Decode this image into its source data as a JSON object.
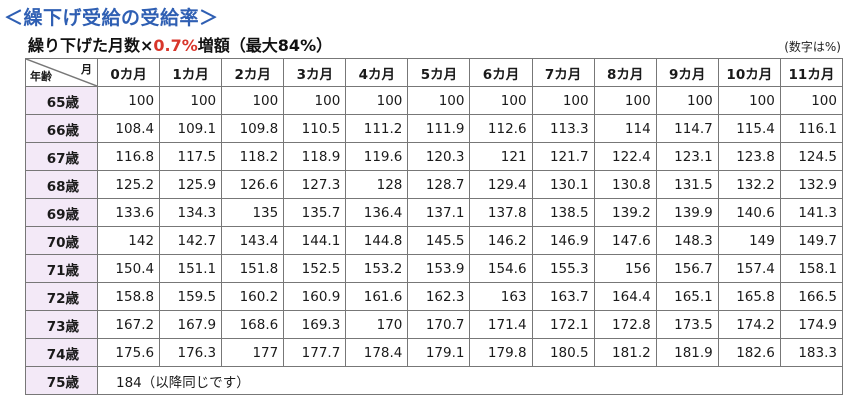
{
  "title": "＜繰下げ受給の受給率＞",
  "subtitle_main": "繰り下げた月数×",
  "subtitle_rate": "0.7%",
  "subtitle_tail": "増額（最大84%）",
  "unit_note": "(数字は%)",
  "corner_month": "月",
  "corner_age": "年齢",
  "months": [
    "0カ月",
    "1カ月",
    "2カ月",
    "3カ月",
    "4カ月",
    "5カ月",
    "6カ月",
    "7カ月",
    "8カ月",
    "9カ月",
    "10カ月",
    "11カ月"
  ],
  "rows": [
    {
      "age": "65歳",
      "values": [
        "100",
        "100",
        "100",
        "100",
        "100",
        "100",
        "100",
        "100",
        "100",
        "100",
        "100",
        "100"
      ]
    },
    {
      "age": "66歳",
      "values": [
        "108.4",
        "109.1",
        "109.8",
        "110.5",
        "111.2",
        "111.9",
        "112.6",
        "113.3",
        "114",
        "114.7",
        "115.4",
        "116.1"
      ]
    },
    {
      "age": "67歳",
      "values": [
        "116.8",
        "117.5",
        "118.2",
        "118.9",
        "119.6",
        "120.3",
        "121",
        "121.7",
        "122.4",
        "123.1",
        "123.8",
        "124.5"
      ]
    },
    {
      "age": "68歳",
      "values": [
        "125.2",
        "125.9",
        "126.6",
        "127.3",
        "128",
        "128.7",
        "129.4",
        "130.1",
        "130.8",
        "131.5",
        "132.2",
        "132.9"
      ]
    },
    {
      "age": "69歳",
      "values": [
        "133.6",
        "134.3",
        "135",
        "135.7",
        "136.4",
        "137.1",
        "137.8",
        "138.5",
        "139.2",
        "139.9",
        "140.6",
        "141.3"
      ]
    },
    {
      "age": "70歳",
      "values": [
        "142",
        "142.7",
        "143.4",
        "144.1",
        "144.8",
        "145.5",
        "146.2",
        "146.9",
        "147.6",
        "148.3",
        "149",
        "149.7"
      ]
    },
    {
      "age": "71歳",
      "values": [
        "150.4",
        "151.1",
        "151.8",
        "152.5",
        "153.2",
        "153.9",
        "154.6",
        "155.3",
        "156",
        "156.7",
        "157.4",
        "158.1"
      ]
    },
    {
      "age": "72歳",
      "values": [
        "158.8",
        "159.5",
        "160.2",
        "160.9",
        "161.6",
        "162.3",
        "163",
        "163.7",
        "164.4",
        "165.1",
        "165.8",
        "166.5"
      ]
    },
    {
      "age": "73歳",
      "values": [
        "167.2",
        "167.9",
        "168.6",
        "169.3",
        "170",
        "170.7",
        "171.4",
        "172.1",
        "172.8",
        "173.5",
        "174.2",
        "174.9"
      ]
    },
    {
      "age": "74歳",
      "values": [
        "175.6",
        "176.3",
        "177",
        "177.7",
        "178.4",
        "179.1",
        "179.8",
        "180.5",
        "181.2",
        "181.9",
        "182.6",
        "183.3"
      ]
    }
  ],
  "last_row": {
    "age": "75歳",
    "note": "184（以降同じです）"
  }
}
